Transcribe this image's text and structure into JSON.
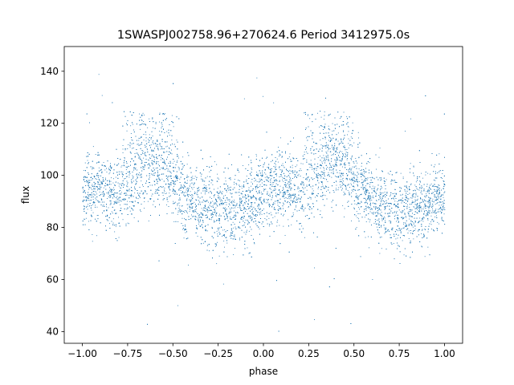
{
  "chart_data": {
    "type": "scatter",
    "title": "1SWASPJ002758.96+270624.6 Period 3412975.0s",
    "xlabel": "phase",
    "ylabel": "flux",
    "xlim": [
      -1.1,
      1.1
    ],
    "ylim": [
      35.5,
      149.5
    ],
    "xticks": [
      -1.0,
      -0.75,
      -0.5,
      -0.25,
      0.0,
      0.25,
      0.5,
      0.75,
      1.0
    ],
    "xtick_labels": [
      "−1.00",
      "−0.75",
      "−0.50",
      "−0.25",
      "0.00",
      "0.25",
      "0.50",
      "0.75",
      "1.00"
    ],
    "yticks": [
      40,
      60,
      80,
      100,
      120,
      140
    ],
    "ytick_labels": [
      "40",
      "60",
      "80",
      "100",
      "120",
      "140"
    ],
    "grid": false,
    "point_color": "#1f77b4",
    "phased_light_curve": {
      "phase_profile": [
        [
          -1.0,
          93
        ],
        [
          -0.95,
          95
        ],
        [
          -0.9,
          96
        ],
        [
          -0.85,
          94
        ],
        [
          -0.8,
          93
        ],
        [
          -0.75,
          96
        ],
        [
          -0.7,
          100
        ],
        [
          -0.65,
          104
        ],
        [
          -0.6,
          103
        ],
        [
          -0.55,
          101
        ],
        [
          -0.5,
          97
        ],
        [
          -0.45,
          94
        ],
        [
          -0.4,
          91
        ],
        [
          -0.35,
          88
        ],
        [
          -0.3,
          86
        ],
        [
          -0.25,
          86
        ],
        [
          -0.2,
          87
        ],
        [
          -0.15,
          88
        ],
        [
          -0.1,
          89
        ],
        [
          -0.05,
          91
        ],
        [
          0.0,
          93
        ],
        [
          0.05,
          95
        ],
        [
          0.1,
          96
        ],
        [
          0.15,
          94
        ],
        [
          0.2,
          93
        ],
        [
          0.25,
          96
        ],
        [
          0.3,
          100
        ],
        [
          0.35,
          104
        ],
        [
          0.4,
          103
        ],
        [
          0.45,
          101
        ],
        [
          0.5,
          97
        ],
        [
          0.55,
          94
        ],
        [
          0.6,
          91
        ],
        [
          0.65,
          88
        ],
        [
          0.7,
          86
        ],
        [
          0.75,
          86
        ],
        [
          0.8,
          87
        ],
        [
          0.85,
          88
        ],
        [
          0.9,
          89
        ],
        [
          0.95,
          91
        ],
        [
          1.0,
          93
        ]
      ],
      "bright_branch": {
        "phase_ranges": [
          [
            -0.78,
            -0.5
          ],
          [
            0.22,
            0.5
          ]
        ],
        "flux_range": [
          108,
          125
        ]
      },
      "scatter_sigma": 7,
      "outlier_flux_range": [
        40,
        141
      ]
    }
  }
}
